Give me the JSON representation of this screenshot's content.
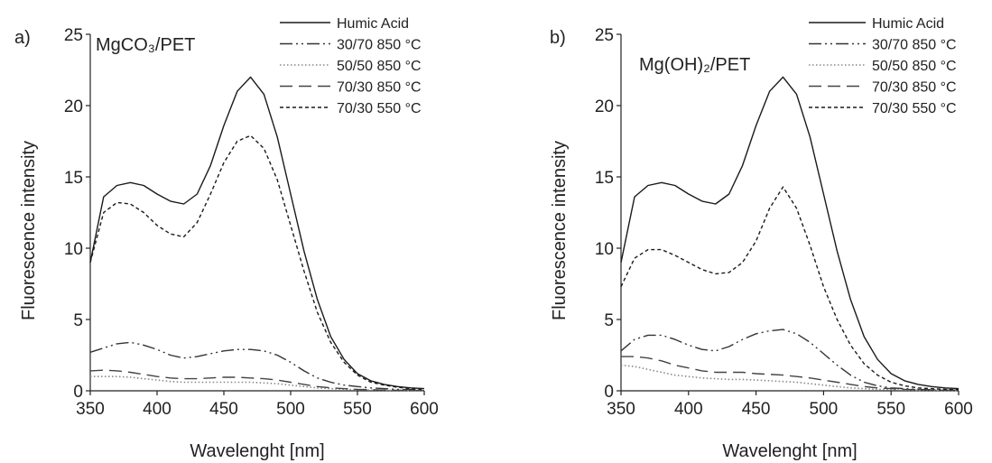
{
  "chart_data": [
    {
      "type": "line",
      "panel_label": "a)",
      "title": "MgCO₃/PET",
      "xlabel": "Wavelenght [nm]",
      "ylabel": "Fluorescence intensity",
      "xlim": [
        350,
        600
      ],
      "ylim": [
        0,
        25
      ],
      "xticks": [
        350,
        400,
        450,
        500,
        550,
        600
      ],
      "yticks": [
        0,
        5,
        10,
        15,
        20,
        25
      ],
      "grid": false,
      "legend_position": "top-right",
      "x": [
        350,
        360,
        370,
        380,
        390,
        400,
        410,
        420,
        430,
        440,
        450,
        460,
        470,
        480,
        490,
        500,
        510,
        520,
        530,
        540,
        550,
        560,
        570,
        580,
        590,
        600
      ],
      "series": [
        {
          "name": "Humic Acid",
          "style": "solid",
          "color": "#1a1a1a",
          "values": [
            9.0,
            13.6,
            14.4,
            14.6,
            14.4,
            13.8,
            13.3,
            13.1,
            13.8,
            15.8,
            18.6,
            21.0,
            22.0,
            20.8,
            17.8,
            13.8,
            9.8,
            6.4,
            3.8,
            2.2,
            1.2,
            0.7,
            0.45,
            0.3,
            0.2,
            0.15
          ]
        },
        {
          "name": "30/70 850 °C",
          "style": "dashdotdot",
          "color": "#333333",
          "values": [
            2.7,
            3.0,
            3.3,
            3.4,
            3.2,
            2.9,
            2.5,
            2.3,
            2.4,
            2.6,
            2.8,
            2.9,
            2.9,
            2.8,
            2.5,
            2.0,
            1.4,
            0.9,
            0.6,
            0.4,
            0.3,
            0.2,
            0.15,
            0.1,
            0.08,
            0.05
          ]
        },
        {
          "name": "50/50 850 °C",
          "style": "dotted",
          "color": "#888888",
          "values": [
            1.0,
            1.0,
            1.0,
            0.95,
            0.85,
            0.75,
            0.65,
            0.6,
            0.6,
            0.6,
            0.6,
            0.6,
            0.6,
            0.55,
            0.5,
            0.4,
            0.3,
            0.2,
            0.15,
            0.1,
            0.08,
            0.05,
            0.04,
            0.03,
            0.02,
            0.02
          ]
        },
        {
          "name": "70/30 850 °C",
          "style": "longdash",
          "color": "#444444",
          "values": [
            1.4,
            1.45,
            1.4,
            1.3,
            1.15,
            1.0,
            0.9,
            0.85,
            0.85,
            0.9,
            0.95,
            0.95,
            0.9,
            0.85,
            0.75,
            0.6,
            0.45,
            0.3,
            0.2,
            0.15,
            0.1,
            0.08,
            0.05,
            0.04,
            0.03,
            0.02
          ]
        },
        {
          "name": "70/30 550 °C",
          "style": "shortdash",
          "color": "#1a1a1a",
          "values": [
            9.0,
            12.5,
            13.2,
            13.1,
            12.5,
            11.6,
            11.0,
            10.8,
            11.8,
            13.8,
            16.0,
            17.5,
            17.9,
            17.0,
            14.8,
            11.6,
            8.4,
            5.5,
            3.4,
            2.0,
            1.1,
            0.6,
            0.4,
            0.25,
            0.15,
            0.1
          ]
        }
      ]
    },
    {
      "type": "line",
      "panel_label": "b)",
      "title": "Mg(OH)₂/PET",
      "xlabel": "Wavelenght [nm]",
      "ylabel": "Fluorescence intensity",
      "xlim": [
        350,
        600
      ],
      "ylim": [
        0,
        25
      ],
      "xticks": [
        350,
        400,
        450,
        500,
        550,
        600
      ],
      "yticks": [
        0,
        5,
        10,
        15,
        20,
        25
      ],
      "grid": false,
      "legend_position": "top-right",
      "x": [
        350,
        360,
        370,
        380,
        390,
        400,
        410,
        420,
        430,
        440,
        450,
        460,
        470,
        480,
        490,
        500,
        510,
        520,
        530,
        540,
        550,
        560,
        570,
        580,
        590,
        600
      ],
      "series": [
        {
          "name": "Humic Acid",
          "style": "solid",
          "color": "#1a1a1a",
          "values": [
            9.0,
            13.6,
            14.4,
            14.6,
            14.4,
            13.8,
            13.3,
            13.1,
            13.8,
            15.8,
            18.6,
            21.0,
            22.0,
            20.8,
            17.8,
            13.8,
            9.8,
            6.4,
            3.8,
            2.2,
            1.2,
            0.7,
            0.45,
            0.3,
            0.2,
            0.15
          ]
        },
        {
          "name": "30/70 850  °C",
          "style": "dashdotdot",
          "color": "#333333",
          "values": [
            2.8,
            3.6,
            3.9,
            3.9,
            3.6,
            3.2,
            2.9,
            2.8,
            3.1,
            3.6,
            4.0,
            4.2,
            4.3,
            4.0,
            3.4,
            2.6,
            1.8,
            1.1,
            0.6,
            0.35,
            0.2,
            0.15,
            0.1,
            0.08,
            0.05,
            0.04
          ]
        },
        {
          "name": "50/50 850  °C",
          "style": "dotted",
          "color": "#888888",
          "values": [
            1.8,
            1.7,
            1.5,
            1.3,
            1.1,
            1.0,
            0.9,
            0.85,
            0.8,
            0.8,
            0.75,
            0.7,
            0.65,
            0.6,
            0.5,
            0.4,
            0.3,
            0.2,
            0.15,
            0.1,
            0.08,
            0.05,
            0.04,
            0.03,
            0.02,
            0.02
          ]
        },
        {
          "name": "70/30 850  °C",
          "style": "longdash",
          "color": "#444444",
          "values": [
            2.4,
            2.4,
            2.3,
            2.1,
            1.8,
            1.6,
            1.4,
            1.3,
            1.3,
            1.3,
            1.2,
            1.15,
            1.1,
            1.0,
            0.9,
            0.75,
            0.6,
            0.45,
            0.3,
            0.2,
            0.15,
            0.1,
            0.08,
            0.05,
            0.04,
            0.03
          ]
        },
        {
          "name": "70/30 550  °C",
          "style": "shortdash",
          "color": "#1a1a1a",
          "values": [
            7.3,
            9.3,
            9.9,
            9.9,
            9.5,
            9.0,
            8.5,
            8.2,
            8.3,
            9.0,
            10.5,
            12.8,
            14.3,
            12.8,
            10.2,
            7.3,
            5.0,
            3.2,
            1.9,
            1.1,
            0.6,
            0.35,
            0.2,
            0.15,
            0.1,
            0.08
          ]
        }
      ]
    }
  ]
}
